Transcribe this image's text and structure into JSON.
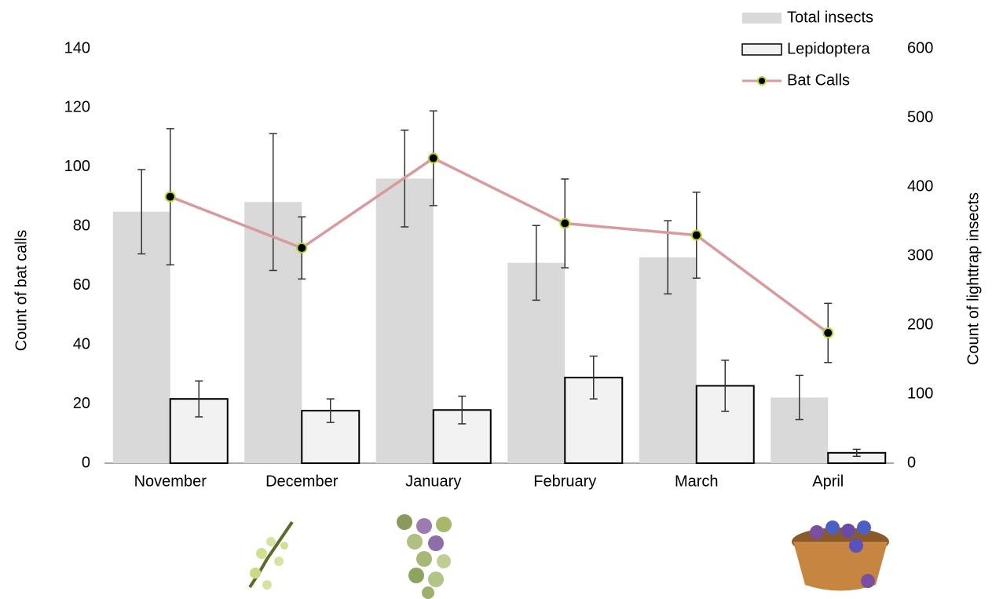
{
  "chart_data": {
    "type": "bar",
    "ylabel": "Count of bat calls",
    "y2label": "Count of lighttrap insects",
    "categories": [
      "November",
      "December",
      "January",
      "February",
      "March",
      "April"
    ],
    "series": [
      {
        "name": "Total insects",
        "type": "bar",
        "axis": "y2",
        "color": "#d9d9d9",
        "values": [
          364,
          378,
          412,
          290,
          298,
          95
        ],
        "errors": [
          61,
          99,
          70,
          54,
          53,
          32
        ]
      },
      {
        "name": "Lepidoptera",
        "type": "bar",
        "axis": "y2",
        "color": "#f2f2f2",
        "edge_color": "#000000",
        "values": [
          93,
          76,
          77,
          124,
          112,
          15
        ],
        "errors": [
          26,
          17,
          20,
          31,
          37,
          5
        ]
      },
      {
        "name": "Bat Calls",
        "type": "line",
        "axis": "y",
        "color": "#d99a9b",
        "marker_color": "#000000",
        "marker_edge_color": "#b5d334",
        "values": [
          90,
          72.7,
          103,
          81,
          77,
          44
        ],
        "errors": [
          23,
          10.5,
          16,
          15,
          14.5,
          10
        ]
      }
    ],
    "ylim": [
      0,
      140
    ],
    "yticks": [
      0,
      20,
      40,
      60,
      80,
      100,
      120,
      140
    ],
    "y2lim": [
      0,
      600
    ],
    "y2ticks": [
      0,
      100,
      200,
      300,
      400,
      500,
      600
    ],
    "legend": "upper right",
    "grid": false
  }
}
